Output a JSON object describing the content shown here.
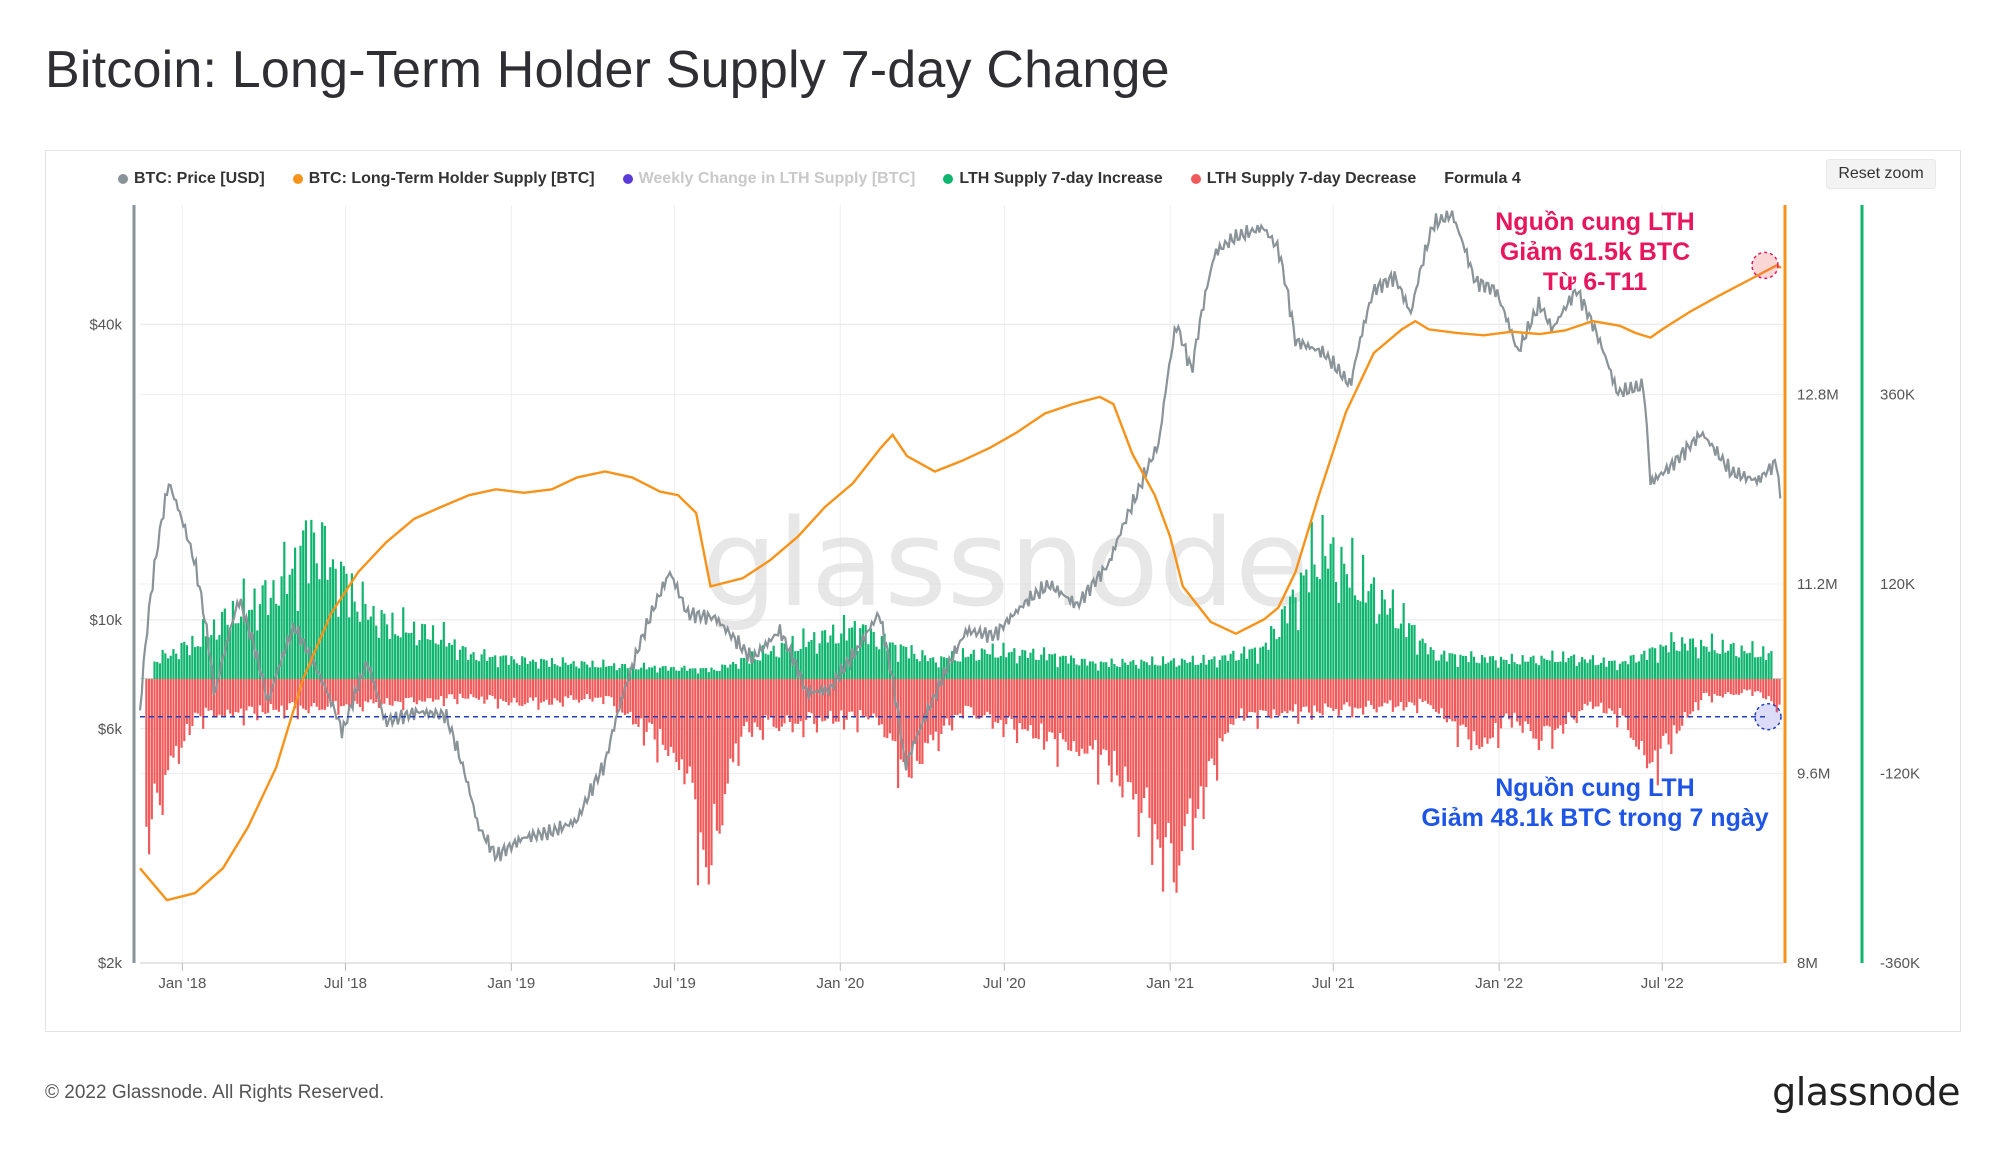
{
  "page": {
    "title": "Bitcoin: Long-Term Holder Supply 7-day Change"
  },
  "toolbar": {
    "reset_zoom_label": "Reset zoom"
  },
  "legend": [
    {
      "label": "BTC: Price [USD]",
      "color": "#8a9498",
      "enabled": true
    },
    {
      "label": "BTC: Long-Term Holder Supply [BTC]",
      "color": "#f7931a",
      "enabled": true
    },
    {
      "label": "Weekly Change in LTH Supply [BTC]",
      "color": "#5b3bd6",
      "enabled": false
    },
    {
      "label": "LTH Supply 7-day Increase",
      "color": "#0fb46e",
      "enabled": true
    },
    {
      "label": "LTH Supply 7-day Decrease",
      "color": "#f05a5a",
      "enabled": true
    },
    {
      "label": "Formula 4",
      "color": "",
      "enabled": true
    }
  ],
  "annotations": {
    "top": [
      "Nguồn cung LTH",
      "Giảm 61.5k BTC",
      "Từ 6-T11"
    ],
    "bottom": [
      "Nguồn cung LTH",
      "Giảm 48.1k BTC trong 7 ngày"
    ],
    "top_color": "#e8175d",
    "bottom_color": "#1f55e6"
  },
  "watermark": "glassnode",
  "footer": {
    "copyright": "© 2022 Glassnode. All Rights Reserved.",
    "logo": "glassnode"
  },
  "chart_data": {
    "type": "line",
    "x_ticks": [
      "Jan '18",
      "Jul '18",
      "Jan '19",
      "Jul '19",
      "Jan '20",
      "Jul '20",
      "Jan '21",
      "Jul '21",
      "Jan '22",
      "Jul '22"
    ],
    "y_axes": {
      "price": {
        "scale": "log",
        "ticks": [
          "$2k",
          "$6k",
          "$10k",
          "$40k"
        ],
        "range": [
          2000,
          70000
        ]
      },
      "supply": {
        "ticks": [
          "8M",
          "9.6M",
          "11.2M",
          "12.8M"
        ],
        "range": [
          8000000,
          14400000
        ]
      },
      "change": {
        "ticks": [
          "-360K",
          "-120K",
          "120K",
          "360K"
        ],
        "range": [
          -360000,
          600000
        ]
      }
    },
    "series": [
      {
        "name": "BTC: Price [USD]",
        "color": "#8a9498",
        "points": [
          [
            "2017-11-15",
            6500
          ],
          [
            "2017-12-17",
            19000
          ],
          [
            "2018-01-15",
            13000
          ],
          [
            "2018-02-06",
            7000
          ],
          [
            "2018-03-05",
            11000
          ],
          [
            "2018-04-06",
            6800
          ],
          [
            "2018-05-05",
            9700
          ],
          [
            "2018-06-28",
            5900
          ],
          [
            "2018-07-25",
            8200
          ],
          [
            "2018-08-14",
            6200
          ],
          [
            "2018-09-20",
            6500
          ],
          [
            "2018-10-20",
            6400
          ],
          [
            "2018-11-25",
            3800
          ],
          [
            "2018-12-15",
            3300
          ],
          [
            "2019-01-15",
            3600
          ],
          [
            "2019-02-15",
            3700
          ],
          [
            "2019-03-15",
            3900
          ],
          [
            "2019-04-15",
            5100
          ],
          [
            "2019-05-15",
            8000
          ],
          [
            "2019-06-26",
            12500
          ],
          [
            "2019-07-15",
            10300
          ],
          [
            "2019-08-15",
            10100
          ],
          [
            "2019-09-25",
            8300
          ],
          [
            "2019-10-26",
            9500
          ],
          [
            "2019-11-25",
            7100
          ],
          [
            "2019-12-20",
            7200
          ],
          [
            "2020-01-20",
            8700
          ],
          [
            "2020-02-13",
            10300
          ],
          [
            "2020-03-13",
            5000
          ],
          [
            "2020-04-15",
            7000
          ],
          [
            "2020-05-20",
            9500
          ],
          [
            "2020-06-20",
            9300
          ],
          [
            "2020-07-28",
            11000
          ],
          [
            "2020-08-20",
            11800
          ],
          [
            "2020-09-20",
            10700
          ],
          [
            "2020-10-25",
            13000
          ],
          [
            "2020-11-25",
            18000
          ],
          [
            "2020-12-20",
            23000
          ],
          [
            "2021-01-08",
            40000
          ],
          [
            "2021-01-25",
            32000
          ],
          [
            "2021-02-20",
            56000
          ],
          [
            "2021-03-13",
            60000
          ],
          [
            "2021-04-14",
            63000
          ],
          [
            "2021-05-01",
            57000
          ],
          [
            "2021-05-20",
            37000
          ],
          [
            "2021-06-20",
            35000
          ],
          [
            "2021-07-20",
            30000
          ],
          [
            "2021-08-15",
            47000
          ],
          [
            "2021-09-07",
            50000
          ],
          [
            "2021-09-25",
            42000
          ],
          [
            "2021-10-20",
            64000
          ],
          [
            "2021-11-10",
            67000
          ],
          [
            "2021-12-05",
            49000
          ],
          [
            "2021-12-28",
            47000
          ],
          [
            "2022-01-22",
            35000
          ],
          [
            "2022-02-15",
            44000
          ],
          [
            "2022-03-01",
            39000
          ],
          [
            "2022-03-28",
            47000
          ],
          [
            "2022-04-15",
            40000
          ],
          [
            "2022-05-12",
            29000
          ],
          [
            "2022-06-10",
            30000
          ],
          [
            "2022-06-18",
            19000
          ],
          [
            "2022-07-10",
            20500
          ],
          [
            "2022-08-14",
            24000
          ],
          [
            "2022-09-15",
            20000
          ],
          [
            "2022-10-15",
            19200
          ],
          [
            "2022-11-05",
            21000
          ],
          [
            "2022-11-10",
            16500
          ]
        ]
      },
      {
        "name": "BTC: Long-Term Holder Supply [BTC]",
        "color": "#f7931a",
        "points": [
          [
            "2017-11-15",
            8800000
          ],
          [
            "2017-12-15",
            8530000
          ],
          [
            "2018-01-15",
            8590000
          ],
          [
            "2018-02-15",
            8800000
          ],
          [
            "2018-03-15",
            9150000
          ],
          [
            "2018-04-15",
            9650000
          ],
          [
            "2018-05-15",
            10400000
          ],
          [
            "2018-06-15",
            10950000
          ],
          [
            "2018-07-15",
            11300000
          ],
          [
            "2018-08-15",
            11550000
          ],
          [
            "2018-09-15",
            11750000
          ],
          [
            "2018-10-15",
            11850000
          ],
          [
            "2018-11-15",
            11950000
          ],
          [
            "2018-12-15",
            12000000
          ],
          [
            "2019-01-15",
            11970000
          ],
          [
            "2019-02-15",
            12000000
          ],
          [
            "2019-03-15",
            12100000
          ],
          [
            "2019-04-15",
            12150000
          ],
          [
            "2019-05-15",
            12100000
          ],
          [
            "2019-06-15",
            11980000
          ],
          [
            "2019-07-05",
            11950000
          ],
          [
            "2019-07-25",
            11800000
          ],
          [
            "2019-08-10",
            11180000
          ],
          [
            "2019-09-15",
            11250000
          ],
          [
            "2019-10-15",
            11400000
          ],
          [
            "2019-11-15",
            11600000
          ],
          [
            "2019-12-15",
            11850000
          ],
          [
            "2020-01-15",
            12050000
          ],
          [
            "2020-02-15",
            12350000
          ],
          [
            "2020-02-28",
            12460000
          ],
          [
            "2020-03-15",
            12280000
          ],
          [
            "2020-04-15",
            12150000
          ],
          [
            "2020-05-15",
            12240000
          ],
          [
            "2020-06-15",
            12350000
          ],
          [
            "2020-07-15",
            12480000
          ],
          [
            "2020-08-15",
            12640000
          ],
          [
            "2020-09-15",
            12720000
          ],
          [
            "2020-10-15",
            12780000
          ],
          [
            "2020-10-30",
            12720000
          ],
          [
            "2020-11-20",
            12300000
          ],
          [
            "2020-12-15",
            11950000
          ],
          [
            "2021-01-01",
            11600000
          ],
          [
            "2021-01-15",
            11180000
          ],
          [
            "2021-02-15",
            10880000
          ],
          [
            "2021-03-15",
            10780000
          ],
          [
            "2021-04-15",
            10900000
          ],
          [
            "2021-05-01",
            11000000
          ],
          [
            "2021-05-20",
            11300000
          ],
          [
            "2021-06-15",
            11950000
          ],
          [
            "2021-07-15",
            12650000
          ],
          [
            "2021-08-15",
            13150000
          ],
          [
            "2021-09-15",
            13350000
          ],
          [
            "2021-09-30",
            13420000
          ],
          [
            "2021-10-15",
            13350000
          ],
          [
            "2021-11-15",
            13320000
          ],
          [
            "2021-12-15",
            13300000
          ],
          [
            "2022-01-15",
            13330000
          ],
          [
            "2022-02-15",
            13310000
          ],
          [
            "2022-03-15",
            13340000
          ],
          [
            "2022-04-15",
            13420000
          ],
          [
            "2022-05-15",
            13380000
          ],
          [
            "2022-06-01",
            13320000
          ],
          [
            "2022-06-18",
            13280000
          ],
          [
            "2022-07-01",
            13350000
          ],
          [
            "2022-08-01",
            13500000
          ],
          [
            "2022-09-01",
            13630000
          ],
          [
            "2022-10-01",
            13750000
          ],
          [
            "2022-11-05",
            13890000
          ],
          [
            "2022-11-10",
            13870000
          ]
        ]
      },
      {
        "name": "LTH Supply 7-day Increase",
        "color": "#0fb46e",
        "points": [
          [
            "2017-12-01",
            30000
          ],
          [
            "2018-01-15",
            60000
          ],
          [
            "2018-03-01",
            110000
          ],
          [
            "2018-04-10",
            140000
          ],
          [
            "2018-05-10",
            200000
          ],
          [
            "2018-05-25",
            240000
          ],
          [
            "2018-06-20",
            180000
          ],
          [
            "2018-07-20",
            120000
          ],
          [
            "2018-08-15",
            90000
          ],
          [
            "2018-09-15",
            80000
          ],
          [
            "2018-10-15",
            70000
          ],
          [
            "2018-11-15",
            40000
          ],
          [
            "2019-01-15",
            30000
          ],
          [
            "2019-03-15",
            25000
          ],
          [
            "2019-05-15",
            20000
          ],
          [
            "2019-08-15",
            15000
          ],
          [
            "2019-10-15",
            45000
          ],
          [
            "2019-12-15",
            70000
          ],
          [
            "2020-01-20",
            85000
          ],
          [
            "2020-02-20",
            60000
          ],
          [
            "2020-04-15",
            30000
          ],
          [
            "2020-06-15",
            45000
          ],
          [
            "2020-08-15",
            40000
          ],
          [
            "2020-10-10",
            25000
          ],
          [
            "2021-02-15",
            30000
          ],
          [
            "2021-04-15",
            50000
          ],
          [
            "2021-05-25",
            150000
          ],
          [
            "2021-06-15",
            220000
          ],
          [
            "2021-07-15",
            180000
          ],
          [
            "2021-08-15",
            140000
          ],
          [
            "2021-09-15",
            100000
          ],
          [
            "2021-10-20",
            40000
          ],
          [
            "2022-01-15",
            30000
          ],
          [
            "2022-03-15",
            35000
          ],
          [
            "2022-05-15",
            25000
          ],
          [
            "2022-07-15",
            60000
          ],
          [
            "2022-09-15",
            50000
          ],
          [
            "2022-11-01",
            40000
          ]
        ]
      },
      {
        "name": "LTH Supply 7-day Decrease",
        "color": "#f05a5a",
        "points": [
          [
            "2017-11-20",
            -250000
          ],
          [
            "2017-12-20",
            -140000
          ],
          [
            "2018-01-15",
            -60000
          ],
          [
            "2018-11-15",
            -30000
          ],
          [
            "2019-01-15",
            -40000
          ],
          [
            "2019-04-15",
            -30000
          ],
          [
            "2019-06-20",
            -110000
          ],
          [
            "2019-07-15",
            -150000
          ],
          [
            "2019-08-05",
            -310000
          ],
          [
            "2019-09-15",
            -80000
          ],
          [
            "2020-02-10",
            -60000
          ],
          [
            "2020-03-13",
            -150000
          ],
          [
            "2020-05-15",
            -50000
          ],
          [
            "2020-10-25",
            -130000
          ],
          [
            "2020-11-15",
            -180000
          ],
          [
            "2020-12-10",
            -230000
          ],
          [
            "2021-01-05",
            -310000
          ],
          [
            "2021-01-20",
            -250000
          ],
          [
            "2021-02-20",
            -130000
          ],
          [
            "2021-03-15",
            -60000
          ],
          [
            "2021-10-15",
            -40000
          ],
          [
            "2021-11-25",
            -90000
          ],
          [
            "2021-12-15",
            -110000
          ],
          [
            "2022-01-15",
            -60000
          ],
          [
            "2022-02-15",
            -100000
          ],
          [
            "2022-04-15",
            -40000
          ],
          [
            "2022-05-15",
            -60000
          ],
          [
            "2022-06-18",
            -140000
          ],
          [
            "2022-08-15",
            -30000
          ],
          [
            "2022-10-15",
            -20000
          ],
          [
            "2022-11-09",
            -48100
          ]
        ]
      }
    ],
    "baseline_change": -48100
  }
}
